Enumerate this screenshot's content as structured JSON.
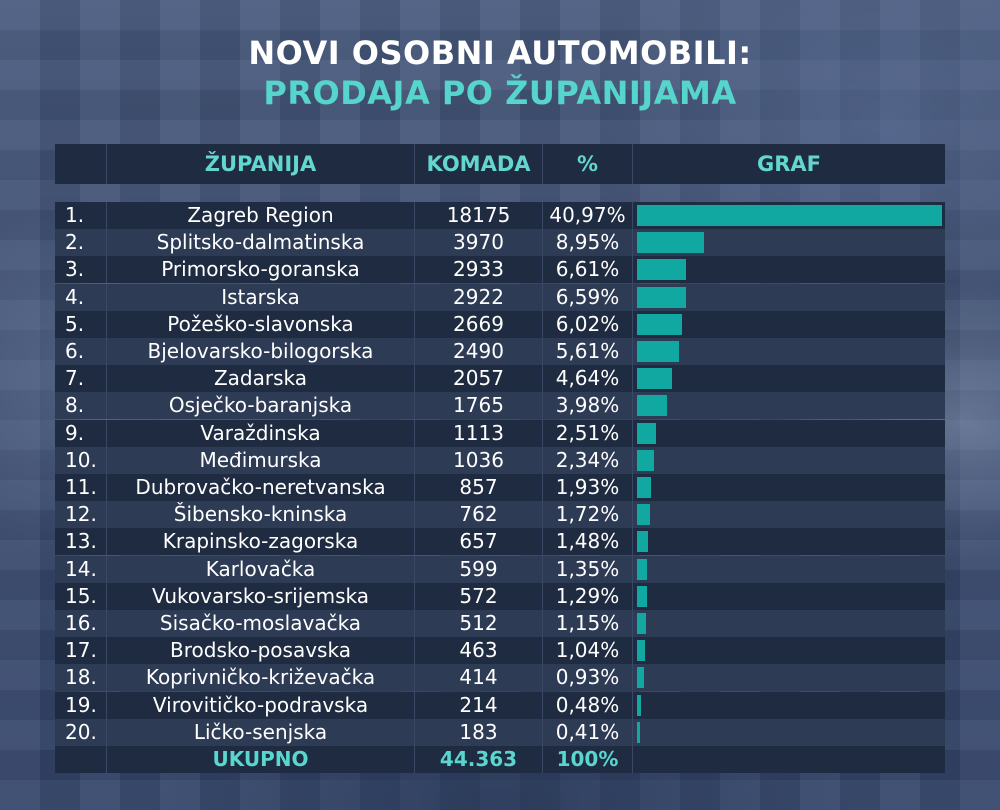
{
  "title_line1": "NOVI OSOBNI AUTOMOBILI:",
  "title_line2": "PRODAJA PO ŽUPANIJAMA",
  "headers": {
    "rank": "",
    "county": "ŽUPANIJA",
    "units": "KOMADA",
    "percent": "%",
    "graph": "GRAF"
  },
  "colors": {
    "bar": "#12a8a2",
    "accent": "#56d5cd",
    "row_dark": "#1f2b40",
    "row_light": "#2e3b55"
  },
  "chart_data": {
    "type": "bar",
    "categories": [
      "Zagreb Region",
      "Splitsko-dalmatinska",
      "Primorsko-goranska",
      "Istarska",
      "Požeško-slavonska",
      "Bjelovarsko-bilogorska",
      "Zadarska",
      "Osječko-baranjska",
      "Varaždinska",
      "Međimurska",
      "Dubrovačko-neretvanska",
      "Šibensko-kninska",
      "Krapinsko-zagorska",
      "Karlovačka",
      "Vukovarsko-srijemska",
      "Sisačko-moslavačka",
      "Brodsko-posavska",
      "Koprivničko-križevačka",
      "Virovitičko-podravska",
      "Ličko-senjska"
    ],
    "values": [
      18175,
      3970,
      2933,
      2922,
      2669,
      2490,
      2057,
      1765,
      1113,
      1036,
      857,
      762,
      657,
      599,
      572,
      512,
      463,
      414,
      214,
      183
    ],
    "ylim": [
      0,
      18175
    ]
  },
  "rows": [
    {
      "rank": "1.",
      "county": "Zagreb Region",
      "units": "18175",
      "percent": "40,97%"
    },
    {
      "rank": "2.",
      "county": "Splitsko-dalmatinska",
      "units": "3970",
      "percent": "8,95%"
    },
    {
      "rank": "3.",
      "county": "Primorsko-goranska",
      "units": "2933",
      "percent": "6,61%"
    },
    {
      "rank": "4.",
      "county": "Istarska",
      "units": "2922",
      "percent": "6,59%"
    },
    {
      "rank": "5.",
      "county": "Požeško-slavonska",
      "units": "2669",
      "percent": "6,02%"
    },
    {
      "rank": "6.",
      "county": "Bjelovarsko-bilogorska",
      "units": "2490",
      "percent": "5,61%"
    },
    {
      "rank": "7.",
      "county": "Zadarska",
      "units": "2057",
      "percent": "4,64%"
    },
    {
      "rank": "8.",
      "county": "Osječko-baranjska",
      "units": "1765",
      "percent": "3,98%"
    },
    {
      "rank": "9.",
      "county": "Varaždinska",
      "units": "1113",
      "percent": "2,51%"
    },
    {
      "rank": "10.",
      "county": "Međimurska",
      "units": "1036",
      "percent": "2,34%"
    },
    {
      "rank": "11.",
      "county": "Dubrovačko-neretvanska",
      "units": "857",
      "percent": "1,93%"
    },
    {
      "rank": "12.",
      "county": "Šibensko-kninska",
      "units": "762",
      "percent": "1,72%"
    },
    {
      "rank": "13.",
      "county": "Krapinsko-zagorska",
      "units": "657",
      "percent": "1,48%"
    },
    {
      "rank": "14.",
      "county": "Karlovačka",
      "units": "599",
      "percent": "1,35%"
    },
    {
      "rank": "15.",
      "county": "Vukovarsko-srijemska",
      "units": "572",
      "percent": "1,29%"
    },
    {
      "rank": "16.",
      "county": "Sisačko-moslavačka",
      "units": "512",
      "percent": "1,15%"
    },
    {
      "rank": "17.",
      "county": "Brodsko-posavska",
      "units": "463",
      "percent": "1,04%"
    },
    {
      "rank": "18.",
      "county": "Koprivničko-križevačka",
      "units": "414",
      "percent": "0,93%"
    },
    {
      "rank": "19.",
      "county": "Virovitičko-podravska",
      "units": "214",
      "percent": "0,48%"
    },
    {
      "rank": "20.",
      "county": "Ličko-senjska",
      "units": "183",
      "percent": "0,41%"
    }
  ],
  "total": {
    "label": "UKUPNO",
    "units": "44.363",
    "percent": "100%"
  }
}
